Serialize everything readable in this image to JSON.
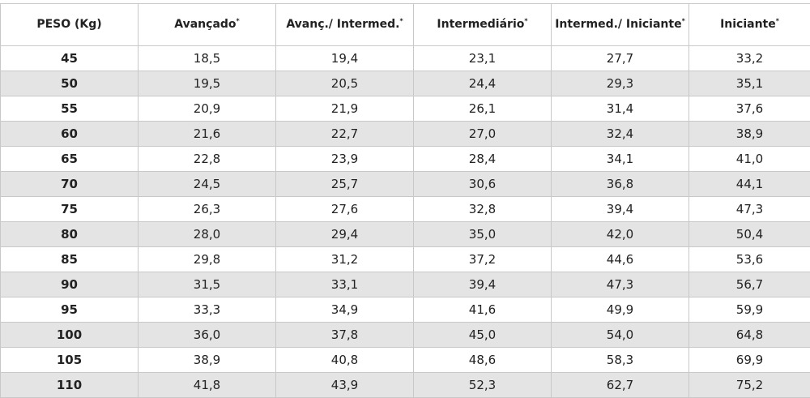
{
  "table": {
    "headers": [
      {
        "label": "PESO (Kg)",
        "mark": ""
      },
      {
        "label": "Avançado",
        "mark": "*"
      },
      {
        "label": "Avanç./ Intermed.",
        "mark": "*"
      },
      {
        "label": "Intermediário",
        "mark": "*"
      },
      {
        "label": "Intermed./ Iniciante",
        "mark": "*"
      },
      {
        "label": "Iniciante",
        "mark": "*"
      }
    ],
    "rows": [
      {
        "weight": "45",
        "values": [
          "18,5",
          "19,4",
          "23,1",
          "27,7",
          "33,2"
        ]
      },
      {
        "weight": "50",
        "values": [
          "19,5",
          "20,5",
          "24,4",
          "29,3",
          "35,1"
        ]
      },
      {
        "weight": "55",
        "values": [
          "20,9",
          "21,9",
          "26,1",
          "31,4",
          "37,6"
        ]
      },
      {
        "weight": "60",
        "values": [
          "21,6",
          "22,7",
          "27,0",
          "32,4",
          "38,9"
        ]
      },
      {
        "weight": "65",
        "values": [
          "22,8",
          "23,9",
          "28,4",
          "34,1",
          "41,0"
        ]
      },
      {
        "weight": "70",
        "values": [
          "24,5",
          "25,7",
          "30,6",
          "36,8",
          "44,1"
        ]
      },
      {
        "weight": "75",
        "values": [
          "26,3",
          "27,6",
          "32,8",
          "39,4",
          "47,3"
        ]
      },
      {
        "weight": "80",
        "values": [
          "28,0",
          "29,4",
          "35,0",
          "42,0",
          "50,4"
        ]
      },
      {
        "weight": "85",
        "values": [
          "29,8",
          "31,2",
          "37,2",
          "44,6",
          "53,6"
        ]
      },
      {
        "weight": "90",
        "values": [
          "31,5",
          "33,1",
          "39,4",
          "47,3",
          "56,7"
        ]
      },
      {
        "weight": "95",
        "values": [
          "33,3",
          "34,9",
          "41,6",
          "49,9",
          "59,9"
        ]
      },
      {
        "weight": "100",
        "values": [
          "36,0",
          "37,8",
          "45,0",
          "54,0",
          "64,8"
        ]
      },
      {
        "weight": "105",
        "values": [
          "38,9",
          "40,8",
          "48,6",
          "58,3",
          "69,9"
        ]
      },
      {
        "weight": "110",
        "values": [
          "41,8",
          "43,9",
          "52,3",
          "62,7",
          "75,2"
        ]
      }
    ]
  },
  "colors": {
    "stripe": "#e4e4e4",
    "border": "#c8c8c8",
    "text": "#222222"
  }
}
